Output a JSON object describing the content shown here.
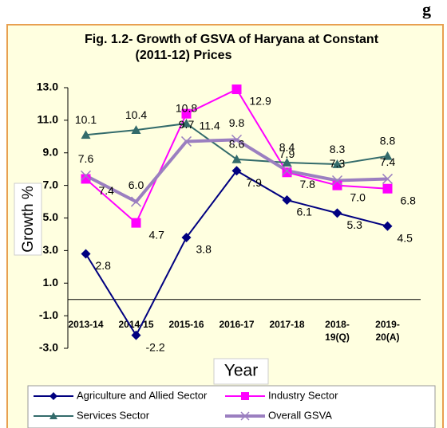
{
  "header_fragment": "g",
  "chart_data": {
    "type": "line",
    "title": [
      "Fig. 1.2- Growth of GSVA of Haryana at Constant",
      "(2011-12) Prices"
    ],
    "xlabel": "Year",
    "ylabel": "Growth %",
    "categories": [
      "2013-14",
      "2014-15",
      "2015-16",
      "2016-17",
      "2017-18",
      "2018-19(Q)",
      "2019-20(A)"
    ],
    "ylim": [
      -3,
      13
    ],
    "yticks": [
      {
        "value": -3,
        "label": "-3.0"
      },
      {
        "value": -1,
        "label": "-1.0"
      },
      {
        "value": 1,
        "label": "1.0"
      },
      {
        "value": 3,
        "label": "3.0"
      },
      {
        "value": 5,
        "label": "5.0"
      },
      {
        "value": 7,
        "label": "7.0"
      },
      {
        "value": 9,
        "label": "9.0"
      },
      {
        "value": 11,
        "label": "11.0"
      },
      {
        "value": 13,
        "label": "13.0"
      }
    ],
    "grid": false,
    "series": [
      {
        "name": "Agriculture and Allied Sector",
        "color": "#000080",
        "marker": "diamond",
        "values": [
          2.8,
          -2.2,
          3.8,
          7.9,
          6.1,
          5.3,
          4.5
        ],
        "value_labels": [
          "2.8",
          "-2.2",
          "3.8",
          "7.9",
          "6.1",
          "5.3",
          "4.5"
        ]
      },
      {
        "name": "Industry Sector",
        "color": "#ff00ff",
        "marker": "square",
        "values": [
          7.4,
          4.7,
          11.4,
          12.9,
          7.8,
          7.0,
          6.8
        ],
        "value_labels": [
          "7.4",
          "4.7",
          "11.4",
          "12.9",
          "7.8",
          "7.0",
          "6.8"
        ]
      },
      {
        "name": "Services Sector",
        "color": "#336b6b",
        "marker": "triangle",
        "values": [
          10.1,
          10.4,
          10.8,
          8.6,
          8.4,
          8.3,
          8.8
        ],
        "value_labels": [
          "10.1",
          "10.4",
          "10.8",
          "8.6",
          "8.4",
          "8.3",
          "8.8"
        ]
      },
      {
        "name": "Overall GSVA",
        "color": "#9b7fc0",
        "marker": "x",
        "values": [
          7.6,
          6.0,
          9.7,
          9.8,
          7.9,
          7.3,
          7.4
        ],
        "value_labels": [
          "7.6",
          "6.0",
          "9.7",
          "9.8",
          "7.9",
          "7.3",
          "7.4"
        ]
      }
    ]
  }
}
